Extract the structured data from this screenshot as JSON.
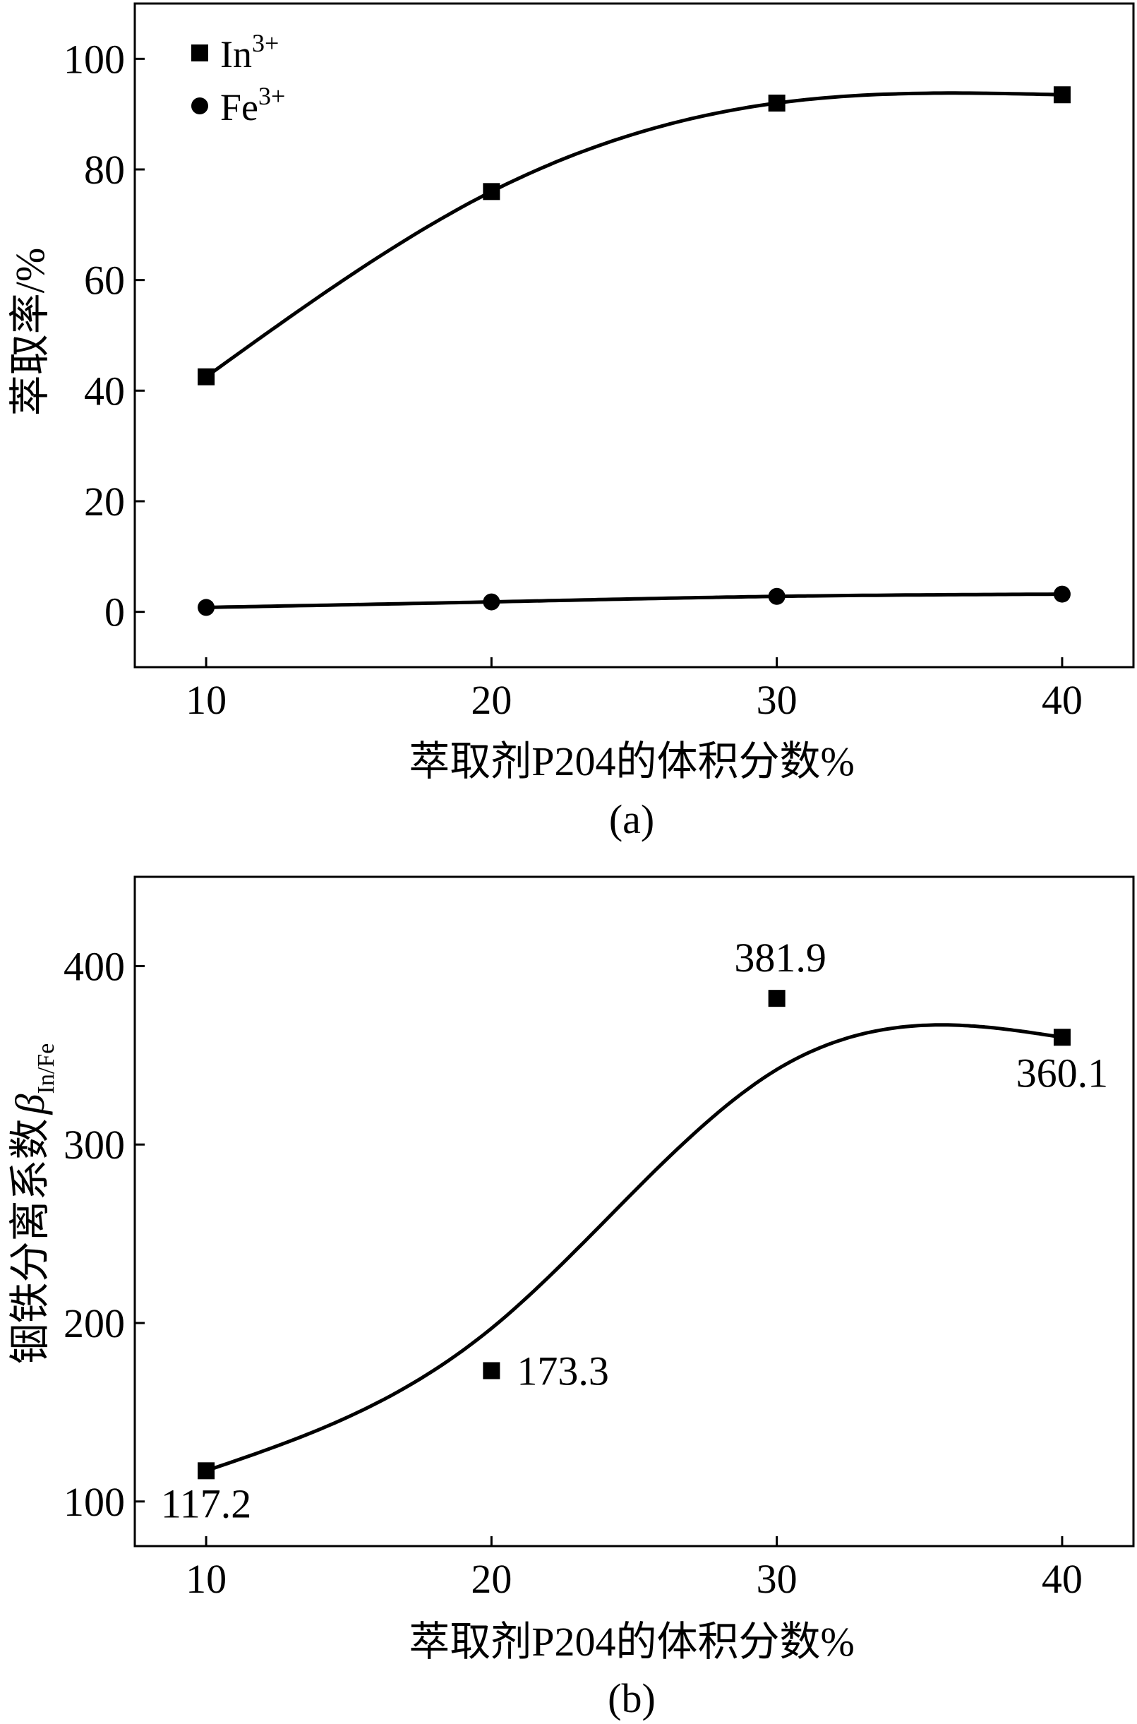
{
  "chart_data": [
    {
      "type": "line",
      "panel": "(a)",
      "xlabel": "萃取剂P204的体积分数%",
      "ylabel": "萃取率/%",
      "xlim": [
        7.5,
        42.5
      ],
      "ylim": [
        -10,
        110
      ],
      "xticks": [
        10,
        20,
        30,
        40
      ],
      "yticks": [
        0,
        20,
        40,
        60,
        80,
        100
      ],
      "legend_position": "top-left",
      "grid": false,
      "series": [
        {
          "name": "In",
          "sup": "3+",
          "marker": "square",
          "x": [
            10,
            20,
            30,
            40
          ],
          "y": [
            42.5,
            76,
            92,
            93.5
          ]
        },
        {
          "name": "Fe",
          "sup": "3+",
          "marker": "circle",
          "x": [
            10,
            20,
            30,
            40
          ],
          "y": [
            0.8,
            1.8,
            2.8,
            3.2
          ]
        }
      ]
    },
    {
      "type": "line",
      "panel": "(b)",
      "xlabel": "萃取剂P204的体积分数%",
      "ylabel": "铟铁分离系数",
      "ylabel_symbol": "β",
      "ylabel_sub": "In/Fe",
      "xlim": [
        7.5,
        42.5
      ],
      "ylim": [
        75,
        450
      ],
      "xticks": [
        10,
        20,
        30,
        40
      ],
      "yticks": [
        100,
        200,
        300,
        400
      ],
      "grid": false,
      "series": [
        {
          "marker": "square",
          "x": [
            10,
            20,
            30,
            40
          ],
          "y": [
            117.2,
            173.3,
            381.9,
            360.1
          ],
          "labels": [
            "117.2",
            "173.3",
            "381.9",
            "360.1"
          ]
        }
      ]
    }
  ]
}
